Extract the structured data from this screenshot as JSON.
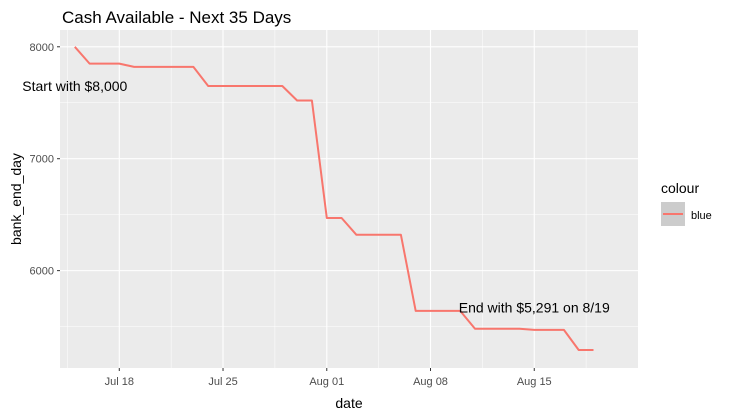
{
  "chart_data": {
    "type": "line",
    "title": "Cash Available - Next 35 Days",
    "xlabel": "date",
    "ylabel": "bank_end_day",
    "x_ticks": [
      "Jul 18",
      "Jul 25",
      "Aug 01",
      "Aug 08",
      "Aug 15"
    ],
    "y_ticks": [
      6000,
      7000,
      8000
    ],
    "x_range": [
      "2023-07-14",
      "2023-08-22"
    ],
    "ylim": [
      5130,
      8150
    ],
    "grid": true,
    "legend": {
      "title": "colour",
      "entries": [
        "blue"
      ],
      "placement": "right"
    },
    "colors": {
      "line": "#F8766D",
      "panel": "#EBEBEB",
      "grid": "#FFFFFF",
      "legend_key": "#CCCCCC"
    },
    "series": [
      {
        "name": "blue",
        "x": [
          "2023-07-15",
          "2023-07-16",
          "2023-07-17",
          "2023-07-18",
          "2023-07-19",
          "2023-07-20",
          "2023-07-21",
          "2023-07-22",
          "2023-07-23",
          "2023-07-24",
          "2023-07-25",
          "2023-07-26",
          "2023-07-27",
          "2023-07-28",
          "2023-07-29",
          "2023-07-30",
          "2023-07-31",
          "2023-08-01",
          "2023-08-02",
          "2023-08-03",
          "2023-08-04",
          "2023-08-05",
          "2023-08-06",
          "2023-08-07",
          "2023-08-08",
          "2023-08-09",
          "2023-08-10",
          "2023-08-11",
          "2023-08-12",
          "2023-08-13",
          "2023-08-14",
          "2023-08-15",
          "2023-08-16",
          "2023-08-17",
          "2023-08-18",
          "2023-08-19"
        ],
        "values": [
          8000,
          7850,
          7850,
          7850,
          7820,
          7820,
          7820,
          7820,
          7820,
          7650,
          7650,
          7650,
          7650,
          7650,
          7650,
          7520,
          7520,
          6470,
          6470,
          6320,
          6320,
          6320,
          6320,
          5640,
          5640,
          5640,
          5640,
          5480,
          5480,
          5480,
          5480,
          5470,
          5470,
          5470,
          5291,
          5291
        ]
      }
    ],
    "annotations": [
      {
        "text": "Start with $8,000",
        "x": "2023-07-15",
        "y": 7650
      },
      {
        "text": "End with $5,291 on 8/19",
        "x": "2023-08-15",
        "y": 5670
      }
    ]
  }
}
